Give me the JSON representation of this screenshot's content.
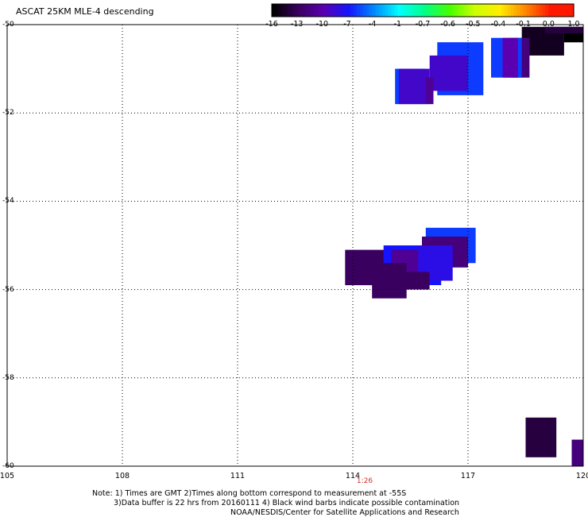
{
  "title": "ASCAT 25KM MLE-4 descending",
  "colorbar": {
    "labels": [
      "-16",
      "-13",
      "-10",
      "-7",
      "-4",
      "-1",
      "-0.7",
      "-0.6",
      "-0.5",
      "-0.4",
      "-0.1",
      "0.0",
      "1.0"
    ],
    "colors": [
      "#000000",
      "#3a0060",
      "#5a00b0",
      "#1414ff",
      "#0088ff",
      "#00ffff",
      "#00ff88",
      "#44ff00",
      "#ccff00",
      "#ffee00",
      "#ff8800",
      "#ff1800"
    ]
  },
  "y_axis_labels": [
    "-50",
    "-52",
    "-54",
    "-56",
    "-58",
    "-60"
  ],
  "x_axis_labels": [
    "105",
    "108",
    "111",
    "114",
    "117",
    "120"
  ],
  "time_label": "1:26",
  "notes": [
    "Note: 1) Times are GMT 2)Times along bottom correspond to measurement at -55S",
    "3)Data buffer is 22 hrs from 20160111 4) Black wind barbs indicate possible contamination",
    "NOAA/NESDIS/Center for Satellite Applications and Research"
  ],
  "chart_data": {
    "type": "heatmap",
    "xlim": [
      105,
      120
    ],
    "ylim": [
      -60,
      -50
    ],
    "xlabel": "",
    "ylabel": "",
    "grid": true,
    "cells": [
      {
        "lon": [
          118.4,
          119.5
        ],
        "lat": [
          -50.05,
          -50.7
        ],
        "value": -15
      },
      {
        "lon": [
          119.5,
          120.0
        ],
        "lat": [
          -50.05,
          -50.4
        ],
        "value": -16
      },
      {
        "lon": [
          119.0,
          120.0
        ],
        "lat": [
          -50.05,
          -50.2
        ],
        "value": -14
      },
      {
        "lon": [
          118.1,
          118.6
        ],
        "lat": [
          -50.3,
          -51.2
        ],
        "value": -12
      },
      {
        "lon": [
          117.6,
          118.4
        ],
        "lat": [
          -50.3,
          -51.2
        ],
        "value": -6
      },
      {
        "lon": [
          117.9,
          118.3
        ],
        "lat": [
          -50.3,
          -51.2
        ],
        "value": -10
      },
      {
        "lon": [
          116.2,
          117.4
        ],
        "lat": [
          -50.4,
          -51.6
        ],
        "value": -6
      },
      {
        "lon": [
          116.0,
          117.0
        ],
        "lat": [
          -50.7,
          -51.5
        ],
        "value": -9
      },
      {
        "lon": [
          115.1,
          115.9
        ],
        "lat": [
          -51.0,
          -51.8
        ],
        "value": -6
      },
      {
        "lon": [
          115.2,
          116.0
        ],
        "lat": [
          -51.0,
          -51.8
        ],
        "value": -9
      },
      {
        "lon": [
          115.9,
          116.1
        ],
        "lat": [
          -51.2,
          -51.8
        ],
        "value": -11
      },
      {
        "lon": [
          115.9,
          117.2
        ],
        "lat": [
          -54.6,
          -55.4
        ],
        "value": -6
      },
      {
        "lon": [
          115.8,
          117.0
        ],
        "lat": [
          -54.8,
          -55.5
        ],
        "value": -12
      },
      {
        "lon": [
          113.8,
          115.0
        ],
        "lat": [
          -55.1,
          -55.9
        ],
        "value": -13
      },
      {
        "lon": [
          114.8,
          116.3
        ],
        "lat": [
          -55.0,
          -55.9
        ],
        "value": -7
      },
      {
        "lon": [
          115.0,
          116.2
        ],
        "lat": [
          -55.1,
          -55.8
        ],
        "value": -11
      },
      {
        "lon": [
          115.7,
          116.6
        ],
        "lat": [
          -55.0,
          -55.8
        ],
        "value": -8
      },
      {
        "lon": [
          114.5,
          115.4
        ],
        "lat": [
          -55.4,
          -56.2
        ],
        "value": -13
      },
      {
        "lon": [
          115.3,
          116.0
        ],
        "lat": [
          -55.6,
          -56.0
        ],
        "value": -13
      },
      {
        "lon": [
          118.5,
          119.3
        ],
        "lat": [
          -58.9,
          -59.8
        ],
        "value": -14
      },
      {
        "lon": [
          119.7,
          120.0
        ],
        "lat": [
          -59.4,
          -60.0
        ],
        "value": -12
      }
    ]
  }
}
